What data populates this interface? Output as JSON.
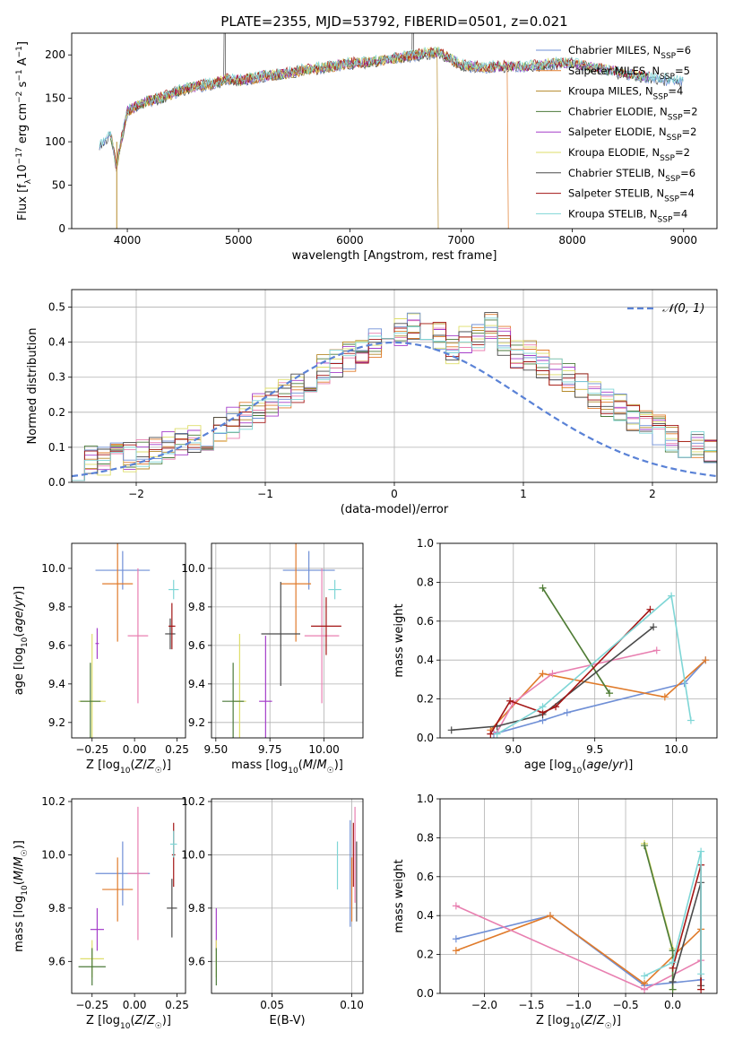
{
  "figure": {
    "title": "PLATE=2355, MJD=53792, FIBERID=0501, z=0.021"
  },
  "colors": {
    "series": [
      "#6f8fd6",
      "#e07b2b",
      "#b58a2a",
      "#4b7a3a",
      "#a53ec9",
      "#dede6a",
      "#4a4a4a",
      "#a31515",
      "#7fd6d6"
    ],
    "extra_pink": "#e87fb0",
    "normal_curve": "#5a82d6",
    "grid": "#b0b0b0"
  },
  "chart_data": [
    {
      "id": "spectrum",
      "type": "line",
      "xlabel": "wavelength [Angstrom, rest frame]",
      "ylabel": "Flux [f_λ 10^-17 erg cm^-2 s^-1 A^-1]",
      "xlim": [
        3500,
        9300
      ],
      "ylim": [
        0,
        225
      ],
      "xticks": [
        4000,
        5000,
        6000,
        7000,
        8000,
        9000
      ],
      "yticks": [
        0,
        50,
        100,
        150,
        200
      ],
      "grid": false,
      "legend_position": "top-right",
      "continuum": {
        "x": [
          3750,
          3800,
          3850,
          3900,
          3950,
          4000,
          4100,
          4200,
          4300,
          4400,
          4500,
          4600,
          4700,
          4800,
          4900,
          5000,
          5200,
          5400,
          5600,
          5800,
          6000,
          6200,
          6400,
          6600,
          6800,
          7000,
          7200,
          7400,
          7600,
          7800,
          8000,
          8200,
          8400,
          8600,
          8800,
          9000,
          9100
        ],
        "y": [
          98,
          102,
          110,
          70,
          105,
          135,
          142,
          148,
          150,
          155,
          160,
          163,
          165,
          168,
          172,
          170,
          175,
          178,
          183,
          186,
          190,
          192,
          196,
          200,
          203,
          188,
          185,
          187,
          186,
          190,
          190,
          185,
          180,
          176,
          172,
          170,
          168
        ]
      },
      "series": [
        {
          "name": "Chabrier MILES, N_SSP=6"
        },
        {
          "name": "Salpeter MILES, N_SSP=5"
        },
        {
          "name": "Kroupa MILES, N_SSP=4"
        },
        {
          "name": "Chabrier ELODIE, N_SSP=2"
        },
        {
          "name": "Salpeter ELODIE, N_SSP=2"
        },
        {
          "name": "Kroupa ELODIE, N_SSP=2"
        },
        {
          "name": "Chabrier STELIB, N_SSP=6"
        },
        {
          "name": "Salpeter STELIB, N_SSP=4"
        },
        {
          "name": "Kroupa STELIB, N_SSP=4"
        }
      ],
      "legend_main": [
        "Chabrier MILES, N",
        "Salpeter MILES, N",
        "Kroupa MILES, N",
        "Chabrier ELODIE, N",
        "Salpeter ELODIE, N",
        "Kroupa ELODIE, N",
        "Chabrier STELIB, N",
        "Salpeter STELIB, N",
        "Kroupa STELIB, N"
      ],
      "legend_sub": "SSP",
      "legend_count": [
        "=6",
        "=5",
        "=4",
        "=2",
        "=2",
        "=2",
        "=6",
        "=4",
        "=4"
      ]
    },
    {
      "id": "residuals",
      "type": "line",
      "xlabel": "(data-model)/error",
      "ylabel": "Normed distribution",
      "xlim": [
        -2.5,
        2.5
      ],
      "ylim": [
        0,
        0.55
      ],
      "xticks": [
        -2,
        -1,
        0,
        1,
        2
      ],
      "yticks": [
        0.0,
        0.1,
        0.2,
        0.3,
        0.4,
        0.5
      ],
      "grid": true,
      "legend_position": "top-right",
      "normal_label": "𝒩(0, 1)",
      "bin_width": 0.1,
      "x_start": -2.5,
      "histogram_base": [
        0.05,
        0.06,
        0.06,
        0.07,
        0.07,
        0.08,
        0.09,
        0.1,
        0.11,
        0.12,
        0.13,
        0.15,
        0.17,
        0.19,
        0.21,
        0.23,
        0.25,
        0.27,
        0.3,
        0.32,
        0.34,
        0.36,
        0.38,
        0.4,
        0.42,
        0.43,
        0.45,
        0.44,
        0.42,
        0.38,
        0.4,
        0.41,
        0.44,
        0.4,
        0.37,
        0.36,
        0.34,
        0.32,
        0.3,
        0.27,
        0.25,
        0.23,
        0.21,
        0.19,
        0.17,
        0.15,
        0.13,
        0.11,
        0.1,
        0.08,
        0.06,
        0.06,
        0.05
      ]
    },
    {
      "id": "age-vs-Z",
      "type": "scatter",
      "xlabel": "Z [log10(Z/Z☉)]",
      "ylabel": "age  [log10(age/yr)]",
      "xlim": [
        -0.37,
        0.3
      ],
      "ylim": [
        9.12,
        10.13
      ],
      "xticks": [
        -0.25,
        0.0,
        0.25
      ],
      "yticks": [
        9.2,
        9.4,
        9.6,
        9.8,
        10.0
      ],
      "grid": false,
      "points": [
        {
          "c": 0,
          "x": -0.07,
          "xe": 0.16,
          "y": 9.99,
          "ye": 0.1
        },
        {
          "c": 1,
          "x": -0.1,
          "xe": 0.09,
          "y": 9.92,
          "ye": 0.3
        },
        {
          "c": 9,
          "x": 0.02,
          "xe": 0.06,
          "y": 9.65,
          "ye": 0.35
        },
        {
          "c": 5,
          "x": -0.25,
          "xe": 0.08,
          "y": 9.31,
          "ye": 0.35
        },
        {
          "c": 3,
          "x": -0.26,
          "xe": 0.06,
          "y": 9.31,
          "ye": 0.2
        },
        {
          "c": 4,
          "x": -0.22,
          "xe": 0.01,
          "y": 9.61,
          "ye": 0.08
        },
        {
          "c": 6,
          "x": 0.21,
          "xe": 0.03,
          "y": 9.66,
          "ye": 0.08
        },
        {
          "c": 7,
          "x": 0.22,
          "xe": 0.02,
          "y": 9.7,
          "ye": 0.12
        },
        {
          "c": 8,
          "x": 0.23,
          "xe": 0.03,
          "y": 9.89,
          "ye": 0.05
        }
      ]
    },
    {
      "id": "age-vs-mass",
      "type": "scatter",
      "xlabel": "mass [log10(M/M☉)]",
      "ylabel": "",
      "xlim": [
        9.48,
        10.18
      ],
      "ylim": [
        9.12,
        10.13
      ],
      "xticks": [
        9.5,
        9.75,
        10.0
      ],
      "yticks": [
        9.2,
        9.4,
        9.6,
        9.8,
        10.0
      ],
      "grid": true,
      "points": [
        {
          "c": 0,
          "x": 9.93,
          "xe": 0.12,
          "y": 9.99,
          "ye": 0.1
        },
        {
          "c": 1,
          "x": 9.87,
          "xe": 0.07,
          "y": 9.92,
          "ye": 0.3
        },
        {
          "c": 9,
          "x": 9.99,
          "xe": 0.08,
          "y": 9.65,
          "ye": 0.35
        },
        {
          "c": 5,
          "x": 9.61,
          "xe": 0.03,
          "y": 9.31,
          "ye": 0.35
        },
        {
          "c": 3,
          "x": 9.58,
          "xe": 0.05,
          "y": 9.31,
          "ye": 0.2
        },
        {
          "c": 4,
          "x": 9.73,
          "xe": 0.03,
          "y": 9.31,
          "ye": 0.34
        },
        {
          "c": 6,
          "x": 9.8,
          "xe": 0.09,
          "y": 9.66,
          "ye": 0.27
        },
        {
          "c": 7,
          "x": 10.01,
          "xe": 0.07,
          "y": 9.7,
          "ye": 0.15
        },
        {
          "c": 8,
          "x": 10.05,
          "xe": 0.03,
          "y": 9.89,
          "ye": 0.05
        }
      ]
    },
    {
      "id": "mass-weight-vs-age",
      "type": "line",
      "xlabel": "age  [log10(age/yr)]",
      "ylabel": "mass weight",
      "xlim": [
        8.55,
        10.25
      ],
      "ylim": [
        0,
        1.0
      ],
      "xticks": [
        9.0,
        9.5,
        10.0
      ],
      "yticks": [
        0.0,
        0.2,
        0.4,
        0.6,
        0.8,
        1.0
      ],
      "grid": true,
      "series": [
        {
          "c": 0,
          "x": [
            8.88,
            9.18,
            9.33,
            10.05,
            10.18
          ],
          "y": [
            0.02,
            0.09,
            0.13,
            0.28,
            0.4
          ]
        },
        {
          "c": 1,
          "x": [
            8.86,
            9.18,
            9.93,
            10.18
          ],
          "y": [
            0.04,
            0.33,
            0.21,
            0.4
          ]
        },
        {
          "c": 9,
          "x": [
            8.9,
            9.0,
            9.24,
            9.88
          ],
          "y": [
            0.03,
            0.18,
            0.33,
            0.45
          ]
        },
        {
          "c": 5,
          "x": [
            9.18,
            9.59
          ],
          "y": [
            0.77,
            0.23
          ]
        },
        {
          "c": 3,
          "x": [
            9.18,
            9.59
          ],
          "y": [
            0.77,
            0.23
          ]
        },
        {
          "c": 6,
          "x": [
            8.62,
            8.9,
            9.18,
            9.86
          ],
          "y": [
            0.04,
            0.06,
            0.12,
            0.57
          ]
        },
        {
          "c": 7,
          "x": [
            8.86,
            8.98,
            9.18,
            9.26,
            9.84
          ],
          "y": [
            0.02,
            0.19,
            0.13,
            0.16,
            0.66
          ]
        },
        {
          "c": 8,
          "x": [
            8.9,
            9.18,
            9.97,
            10.09
          ],
          "y": [
            0.02,
            0.16,
            0.73,
            0.09
          ]
        }
      ]
    },
    {
      "id": "mass-vs-Z",
      "type": "scatter",
      "xlabel": "Z [log10(Z/Z☉)]",
      "ylabel": "mass [log10(M/M☉)]",
      "xlim": [
        -0.37,
        0.3
      ],
      "ylim": [
        9.48,
        10.21
      ],
      "xticks": [
        -0.25,
        0.0,
        0.25
      ],
      "yticks": [
        9.6,
        9.8,
        10.0,
        10.2
      ],
      "grid": false,
      "points": [
        {
          "c": 0,
          "x": -0.07,
          "xe": 0.16,
          "y": 9.93,
          "ye": 0.12
        },
        {
          "c": 1,
          "x": -0.1,
          "xe": 0.09,
          "y": 9.87,
          "ye": 0.12
        },
        {
          "c": 9,
          "x": 0.02,
          "xe": 0.06,
          "y": 9.93,
          "ye": 0.25
        },
        {
          "c": 5,
          "x": -0.25,
          "xe": 0.07,
          "y": 9.61,
          "ye": 0.07
        },
        {
          "c": 3,
          "x": -0.25,
          "xe": 0.08,
          "y": 9.58,
          "ye": 0.07
        },
        {
          "c": 4,
          "x": -0.22,
          "xe": 0.04,
          "y": 9.72,
          "ye": 0.08
        },
        {
          "c": 6,
          "x": 0.22,
          "xe": 0.03,
          "y": 9.8,
          "ye": 0.11
        },
        {
          "c": 7,
          "x": 0.23,
          "xe": 0.01,
          "y": 10.0,
          "ye": 0.12
        },
        {
          "c": 8,
          "x": 0.23,
          "xe": 0.02,
          "y": 10.04,
          "ye": 0.05
        }
      ]
    },
    {
      "id": "mass-vs-EBV",
      "type": "scatter",
      "xlabel": "E(B-V)",
      "ylabel": "",
      "xlim": [
        0.012,
        0.107
      ],
      "ylim": [
        9.48,
        10.21
      ],
      "xticks": [
        0.05,
        0.1
      ],
      "yticks": [
        9.6,
        9.8,
        10.0,
        10.2
      ],
      "grid": true,
      "points": [
        {
          "c": 4,
          "x": 0.015,
          "y": 9.72,
          "ye": 0.08
        },
        {
          "c": 5,
          "x": 0.015,
          "y": 9.61,
          "ye": 0.07
        },
        {
          "c": 3,
          "x": 0.015,
          "y": 9.58,
          "ye": 0.07
        },
        {
          "c": 8,
          "x": 0.091,
          "y": 9.96,
          "ye": 0.09
        },
        {
          "c": 0,
          "x": 0.099,
          "y": 9.93,
          "ye": 0.2
        },
        {
          "c": 1,
          "x": 0.1,
          "y": 9.87,
          "ye": 0.12
        },
        {
          "c": 9,
          "x": 0.102,
          "y": 10.0,
          "ye": 0.18
        },
        {
          "c": 6,
          "x": 0.103,
          "y": 9.9,
          "ye": 0.15
        },
        {
          "c": 7,
          "x": 0.101,
          "y": 10.0,
          "ye": 0.12
        }
      ]
    },
    {
      "id": "mass-weight-vs-Z",
      "type": "line",
      "xlabel": "Z [log10(Z/Z☉)]",
      "ylabel": "mass weight",
      "xlim": [
        -2.47,
        0.47
      ],
      "ylim": [
        0,
        1.0
      ],
      "xticks": [
        -2.0,
        -1.5,
        -1.0,
        -0.5,
        0.0
      ],
      "yticks": [
        0.0,
        0.2,
        0.4,
        0.6,
        0.8,
        1.0
      ],
      "grid": true,
      "series": [
        {
          "c": 0,
          "x": [
            -2.3,
            -1.3,
            -0.3,
            0.3
          ],
          "y": [
            0.28,
            0.4,
            0.04,
            0.07
          ]
        },
        {
          "c": 1,
          "x": [
            -2.3,
            -1.3,
            -0.3,
            0.3
          ],
          "y": [
            0.22,
            0.4,
            0.05,
            0.33
          ]
        },
        {
          "c": 9,
          "x": [
            -2.3,
            -0.3,
            0.3
          ],
          "y": [
            0.45,
            0.02,
            0.17
          ]
        },
        {
          "c": 5,
          "x": [
            -0.3,
            0.0,
            0.0
          ],
          "y": [
            0.77,
            0.23,
            0.02
          ]
        },
        {
          "c": 3,
          "x": [
            -0.3,
            0.0,
            0.0
          ],
          "y": [
            0.76,
            0.22,
            0.02
          ]
        },
        {
          "c": 6,
          "x": [
            0.0,
            0.3,
            0.3
          ],
          "y": [
            0.06,
            0.57,
            0.04
          ]
        },
        {
          "c": 7,
          "x": [
            0.0,
            0.3,
            0.3
          ],
          "y": [
            0.13,
            0.66,
            0.02
          ]
        },
        {
          "c": 8,
          "x": [
            -0.3,
            0.0,
            0.3,
            0.3
          ],
          "y": [
            0.09,
            0.16,
            0.73,
            0.1
          ]
        }
      ]
    }
  ]
}
